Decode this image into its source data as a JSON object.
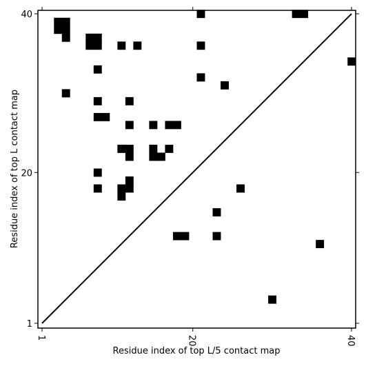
{
  "chart_data": {
    "type": "heatmap",
    "xlabel": "Residue index of top L/5 contact map",
    "ylabel": "Residue index of top L contact map",
    "xlim": [
      1,
      40
    ],
    "ylim": [
      1,
      40
    ],
    "x_ticks": [
      {
        "value": 1,
        "label": "1"
      },
      {
        "value": 20,
        "label": "20"
      },
      {
        "value": 40,
        "label": "40"
      }
    ],
    "y_ticks": [
      {
        "value": 1,
        "label": "1"
      },
      {
        "value": 20,
        "label": "20"
      },
      {
        "value": 40,
        "label": "40"
      }
    ],
    "diagonal": true,
    "colors": {
      "contact": "#000000",
      "background": "#ffffff"
    },
    "contacts": [
      [
        3,
        39
      ],
      [
        4,
        39
      ],
      [
        3,
        38
      ],
      [
        4,
        38
      ],
      [
        4,
        37
      ],
      [
        7,
        37
      ],
      [
        8,
        37
      ],
      [
        7,
        36
      ],
      [
        8,
        36
      ],
      [
        11,
        36
      ],
      [
        13,
        36
      ],
      [
        8,
        33
      ],
      [
        4,
        30
      ],
      [
        8,
        29
      ],
      [
        12,
        29
      ],
      [
        8,
        27
      ],
      [
        9,
        27
      ],
      [
        12,
        26
      ],
      [
        15,
        26
      ],
      [
        17,
        26
      ],
      [
        18,
        26
      ],
      [
        11,
        23
      ],
      [
        12,
        23
      ],
      [
        15,
        23
      ],
      [
        17,
        23
      ],
      [
        12,
        22
      ],
      [
        15,
        22
      ],
      [
        16,
        22
      ],
      [
        8,
        20
      ],
      [
        12,
        19
      ],
      [
        8,
        18
      ],
      [
        11,
        18
      ],
      [
        12,
        18
      ],
      [
        11,
        17
      ],
      [
        21,
        40
      ],
      [
        21,
        36
      ],
      [
        21,
        32
      ],
      [
        24,
        31
      ],
      [
        33,
        40
      ],
      [
        34,
        40
      ],
      [
        40,
        34
      ],
      [
        26,
        18
      ],
      [
        23,
        15
      ],
      [
        23,
        12
      ],
      [
        18,
        12
      ],
      [
        19,
        12
      ],
      [
        36,
        11
      ],
      [
        30,
        4
      ]
    ]
  }
}
